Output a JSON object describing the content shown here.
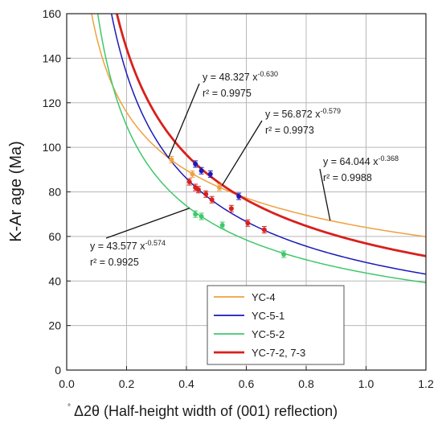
{
  "chart_data": {
    "type": "scatter",
    "xlabel": "Δ2θ (Half-height width of (001) reflection)",
    "xlabel_mark": "°",
    "ylabel": "K-Ar age (Ma)",
    "xlim": [
      0.0,
      1.2
    ],
    "ylim": [
      0,
      160
    ],
    "x_ticks": [
      "0.0",
      "0.2",
      "0.4",
      "0.6",
      "0.8",
      "1.0",
      "1.2"
    ],
    "y_ticks": [
      "0",
      "20",
      "40",
      "60",
      "80",
      "100",
      "120",
      "140",
      "160"
    ],
    "grid": true,
    "legend": {
      "position": "bottom-right",
      "entries": [
        "YC-4",
        "YC-5-1",
        "YC-5-2",
        "YC-7-2, 7-3"
      ]
    },
    "series": [
      {
        "name": "YC-4",
        "color": "#f0a040",
        "fit": {
          "a": 64.044,
          "b": -0.368,
          "eq": "y = 64.044 x",
          "exp": "-0.368",
          "r2": "r² = 0.9988"
        },
        "points": [
          [
            0.35,
            94.5
          ],
          [
            0.42,
            88.0
          ],
          [
            0.51,
            82.0
          ]
        ]
      },
      {
        "name": "YC-5-1",
        "color": "#1a1ab8",
        "fit": {
          "a": 48.327,
          "b": -0.63,
          "eq": "y = 48.327 x",
          "exp": "-0.630",
          "r2": "r² = 0.9975"
        },
        "points": [
          [
            0.43,
            92.5
          ],
          [
            0.45,
            89.5
          ],
          [
            0.48,
            88.0
          ],
          [
            0.575,
            78.0
          ]
        ]
      },
      {
        "name": "YC-5-2",
        "color": "#3ec86a",
        "fit": {
          "a": 43.577,
          "b": -0.574,
          "eq": "y = 43.577 x",
          "exp": "-0.574",
          "r2": "r² = 0.9925"
        },
        "points": [
          [
            0.43,
            70.0
          ],
          [
            0.45,
            69.0
          ],
          [
            0.52,
            65.0
          ],
          [
            0.725,
            52.0
          ]
        ]
      },
      {
        "name": "YC-7-2, 7-3",
        "color": "#d8201c",
        "fit": {
          "a": 56.872,
          "b": -0.579,
          "eq": "y = 56.872 x",
          "exp": "-0.579",
          "r2": "r² = 0.9973"
        },
        "points": [
          [
            0.41,
            84.5
          ],
          [
            0.43,
            82.0
          ],
          [
            0.44,
            81.0
          ],
          [
            0.465,
            79.0
          ],
          [
            0.485,
            76.5
          ],
          [
            0.55,
            72.5
          ],
          [
            0.605,
            66.0
          ],
          [
            0.66,
            63.0
          ]
        ]
      }
    ]
  }
}
